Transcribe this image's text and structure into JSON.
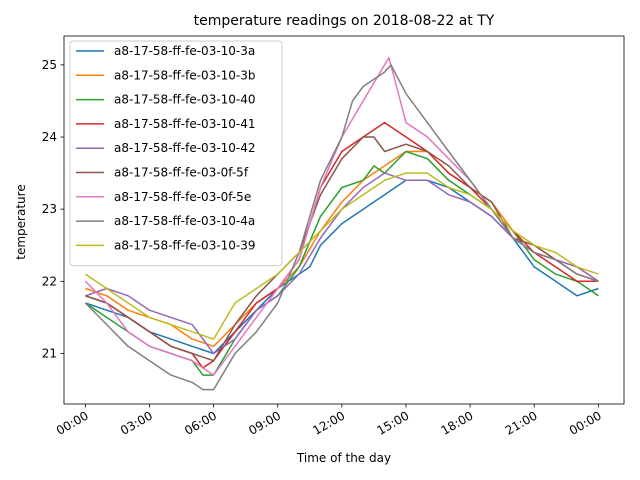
{
  "chart_data": {
    "type": "line",
    "title": "temperature readings on 2018-08-22 at TY",
    "xlabel": "Time of the day",
    "ylabel": "temperature",
    "xlim": [
      -1.0,
      25.2
    ],
    "ylim": [
      20.3,
      25.4
    ],
    "x_unit": "hours",
    "x_ticks": [
      {
        "value": 0,
        "label": "00:00"
      },
      {
        "value": 3,
        "label": "03:00"
      },
      {
        "value": 6,
        "label": "06:00"
      },
      {
        "value": 9,
        "label": "09:00"
      },
      {
        "value": 12,
        "label": "12:00"
      },
      {
        "value": 15,
        "label": "15:00"
      },
      {
        "value": 18,
        "label": "18:00"
      },
      {
        "value": 21,
        "label": "21:00"
      },
      {
        "value": 24,
        "label": "00:00"
      }
    ],
    "y_ticks": [
      21,
      22,
      23,
      24,
      25
    ],
    "grid": false,
    "legend_position": "upper-left",
    "series": [
      {
        "name": "a8-17-58-ff-fe-03-10-3a",
        "color": "#1f77b4",
        "x": [
          0,
          1,
          2,
          3,
          4,
          5,
          6,
          7,
          8,
          9,
          10,
          10.5,
          11,
          12,
          13,
          13.5,
          14,
          15,
          16,
          17,
          18,
          19,
          20,
          21,
          22,
          22.5,
          23,
          24
        ],
        "y": [
          21.7,
          21.6,
          21.5,
          21.3,
          21.2,
          21.1,
          21.0,
          21.3,
          21.6,
          21.9,
          22.1,
          22.2,
          22.5,
          22.8,
          23.0,
          23.1,
          23.2,
          23.4,
          23.4,
          23.3,
          23.1,
          22.9,
          22.6,
          22.2,
          22.0,
          21.9,
          21.8,
          21.9
        ]
      },
      {
        "name": "a8-17-58-ff-fe-03-10-3b",
        "color": "#ff7f0e",
        "x": [
          0,
          1,
          2,
          3,
          4,
          5,
          6,
          7,
          8,
          9,
          10,
          11,
          12,
          13,
          14,
          15,
          16,
          17,
          18,
          19,
          20,
          21,
          22,
          23,
          24
        ],
        "y": [
          21.9,
          21.8,
          21.6,
          21.5,
          21.4,
          21.2,
          21.1,
          21.4,
          21.7,
          21.9,
          22.2,
          22.7,
          23.1,
          23.4,
          23.6,
          23.8,
          23.8,
          23.5,
          23.3,
          23.1,
          22.7,
          22.5,
          22.3,
          22.2,
          22.0
        ]
      },
      {
        "name": "a8-17-58-ff-fe-03-10-40",
        "color": "#2ca02c",
        "x": [
          0,
          1,
          2,
          3,
          4,
          5,
          5.5,
          6,
          7,
          8,
          9,
          10,
          11,
          12,
          13,
          13.5,
          14,
          15,
          16,
          17,
          18,
          19,
          20,
          21,
          22,
          23,
          24
        ],
        "y": [
          21.7,
          21.5,
          21.3,
          21.1,
          21.0,
          20.9,
          20.7,
          20.7,
          21.2,
          21.6,
          21.8,
          22.2,
          22.9,
          23.3,
          23.4,
          23.6,
          23.5,
          23.8,
          23.7,
          23.4,
          23.2,
          23.0,
          22.7,
          22.3,
          22.1,
          22.0,
          21.8
        ]
      },
      {
        "name": "a8-17-58-ff-fe-03-10-41",
        "color": "#d62728",
        "x": [
          0,
          1,
          2,
          3,
          4,
          5,
          5.5,
          6,
          7,
          8,
          9,
          10,
          11,
          12,
          13,
          14,
          15,
          16,
          17,
          18,
          19,
          20,
          21,
          22,
          23,
          24
        ],
        "y": [
          21.8,
          21.7,
          21.5,
          21.3,
          21.1,
          21.0,
          20.8,
          20.9,
          21.3,
          21.7,
          21.9,
          22.3,
          23.3,
          23.8,
          24.0,
          24.2,
          24.0,
          23.8,
          23.5,
          23.3,
          23.0,
          22.7,
          22.4,
          22.2,
          22.0,
          22.0
        ]
      },
      {
        "name": "a8-17-58-ff-fe-03-10-42",
        "color": "#9467bd",
        "x": [
          0,
          1,
          2,
          3,
          4,
          5,
          6,
          7,
          8,
          9,
          10,
          11,
          12,
          13,
          14,
          15,
          16,
          17,
          18,
          19,
          20,
          21,
          22,
          23,
          24
        ],
        "y": [
          21.8,
          21.9,
          21.8,
          21.6,
          21.5,
          21.4,
          21.0,
          21.2,
          21.6,
          21.8,
          22.1,
          22.6,
          23.0,
          23.3,
          23.5,
          23.4,
          23.4,
          23.2,
          23.1,
          22.9,
          22.6,
          22.4,
          22.3,
          22.2,
          22.0
        ]
      },
      {
        "name": "a8-17-58-ff-fe-03-0f-5f",
        "color": "#8c564b",
        "x": [
          0,
          1,
          2,
          3,
          4,
          5,
          6,
          7,
          8,
          9,
          10,
          11,
          12,
          13,
          13.5,
          14,
          15,
          16,
          17,
          18,
          19,
          20,
          21,
          22,
          23,
          24
        ],
        "y": [
          21.8,
          21.7,
          21.5,
          21.3,
          21.1,
          21.0,
          20.9,
          21.4,
          21.8,
          22.1,
          22.4,
          23.2,
          23.7,
          24.0,
          24.0,
          23.8,
          23.9,
          23.8,
          23.6,
          23.3,
          23.1,
          22.6,
          22.5,
          22.3,
          22.1,
          22.0
        ]
      },
      {
        "name": "a8-17-58-ff-fe-03-0f-5e",
        "color": "#e377c2",
        "x": [
          0,
          1,
          2,
          3,
          4,
          5,
          6,
          7,
          8,
          9,
          10,
          11,
          12,
          13,
          14,
          14.2,
          15,
          16,
          17,
          18,
          19,
          20,
          21,
          22,
          23,
          24
        ],
        "y": [
          22.0,
          21.7,
          21.3,
          21.1,
          21.0,
          20.9,
          20.7,
          21.1,
          21.5,
          21.9,
          22.3,
          23.3,
          24.0,
          24.5,
          25.0,
          25.1,
          24.2,
          24.0,
          23.7,
          23.4,
          23.0,
          22.6,
          22.4,
          22.3,
          22.1,
          22.0
        ]
      },
      {
        "name": "a8-17-58-ff-fe-03-10-4a",
        "color": "#7f7f7f",
        "x": [
          0,
          1,
          2,
          3,
          4,
          5,
          5.5,
          6,
          6.2,
          7,
          8,
          9,
          10,
          11,
          12,
          12.5,
          13,
          13.5,
          14,
          14.3,
          15,
          16,
          17,
          18,
          19,
          20,
          21,
          22,
          23,
          24
        ],
        "y": [
          21.7,
          21.4,
          21.1,
          20.9,
          20.7,
          20.6,
          20.5,
          20.5,
          20.6,
          21.0,
          21.3,
          21.7,
          22.4,
          23.4,
          24.0,
          24.5,
          24.7,
          24.8,
          24.9,
          25.0,
          24.6,
          24.2,
          23.8,
          23.4,
          23.0,
          22.6,
          22.4,
          22.3,
          22.1,
          22.0
        ]
      },
      {
        "name": "a8-17-58-ff-fe-03-10-39",
        "color": "#bcbd22",
        "x": [
          0,
          1,
          2,
          3,
          4,
          5,
          6,
          7,
          8,
          9,
          10,
          11,
          12,
          13,
          14,
          15,
          16,
          17,
          18,
          19,
          20,
          21,
          22,
          23,
          24
        ],
        "y": [
          22.1,
          21.9,
          21.7,
          21.5,
          21.4,
          21.3,
          21.2,
          21.7,
          21.9,
          22.1,
          22.4,
          22.7,
          23.0,
          23.2,
          23.4,
          23.5,
          23.5,
          23.3,
          23.2,
          23.0,
          22.7,
          22.5,
          22.4,
          22.2,
          22.1
        ]
      }
    ]
  }
}
